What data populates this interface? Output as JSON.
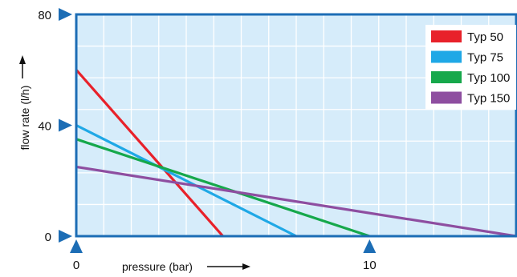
{
  "colors": {
    "plot_bg": "#d6ecfa",
    "grid": "#ffffff",
    "frame": "#1c6db5",
    "marker": "#1c6db5"
  },
  "chart_data": {
    "type": "line",
    "xlabel": "pressure (bar)",
    "ylabel": "flow rate (l/h)",
    "xlim": [
      0,
      15
    ],
    "ylim": [
      0,
      80
    ],
    "x_ticks": [
      0,
      10
    ],
    "y_ticks": [
      0,
      40,
      80
    ],
    "grid": true,
    "legend_position": "top-right",
    "series": [
      {
        "name": "Typ 50",
        "color": "#e8212a",
        "x": [
          0,
          5
        ],
        "y": [
          60,
          0
        ]
      },
      {
        "name": "Typ 75",
        "color": "#1fa8e6",
        "x": [
          0,
          7.5
        ],
        "y": [
          40,
          0
        ]
      },
      {
        "name": "Typ 100",
        "color": "#16a84b",
        "x": [
          0,
          10
        ],
        "y": [
          35,
          0
        ]
      },
      {
        "name": "Typ 150",
        "color": "#8e4ea0",
        "x": [
          0,
          15
        ],
        "y": [
          25,
          0
        ]
      }
    ]
  }
}
